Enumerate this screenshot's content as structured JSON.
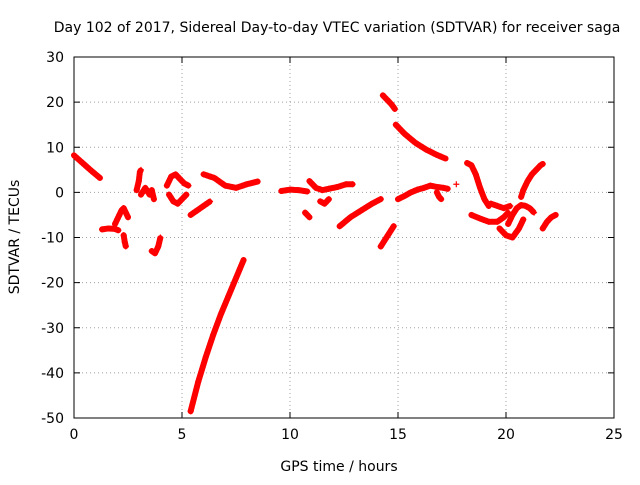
{
  "chart_data": {
    "type": "scatter",
    "title": "Day 102 of 2017, Sidereal Day-to-day VTEC variation (SDTVAR) for receiver saga",
    "xlabel": "GPS time / hours",
    "ylabel": "SDTVAR / TECUs",
    "xlim": [
      0,
      25
    ],
    "ylim": [
      -50,
      30
    ],
    "xticks": [
      "0",
      "5",
      "10",
      "15",
      "20",
      "25"
    ],
    "yticks": [
      "-50",
      "-40",
      "-30",
      "-20",
      "-10",
      "0",
      "10",
      "20",
      "30"
    ],
    "grid": true,
    "marker": "+",
    "color": "#ff0000",
    "segments": [
      {
        "x": [
          0.0,
          0.4,
          0.8,
          1.2
        ],
        "y": [
          8.2,
          6.5,
          4.8,
          3.2
        ]
      },
      {
        "x": [
          1.3,
          1.6,
          1.9,
          2.05
        ],
        "y": [
          -8.2,
          -8.0,
          -8.1,
          -8.4
        ]
      },
      {
        "x": [
          1.9,
          2.0,
          2.1,
          2.2,
          2.3,
          2.4,
          2.5
        ],
        "y": [
          -7.0,
          -6.0,
          -5.0,
          -4.0,
          -3.5,
          -4.5,
          -5.5
        ]
      },
      {
        "x": [
          2.3,
          2.35,
          2.4
        ],
        "y": [
          -9.5,
          -11.0,
          -12.0
        ]
      },
      {
        "x": [
          2.9,
          3.0,
          3.05,
          3.1
        ],
        "y": [
          0.5,
          2.5,
          4.5,
          5.0
        ]
      },
      {
        "x": [
          3.1,
          3.3,
          3.5,
          3.6,
          3.7
        ],
        "y": [
          -0.5,
          1.0,
          -0.5,
          0.5,
          -1.5
        ]
      },
      {
        "x": [
          3.6,
          3.75,
          3.9,
          4.0
        ],
        "y": [
          -13.0,
          -13.5,
          -12.0,
          -10.0
        ]
      },
      {
        "x": [
          4.3,
          4.5,
          4.7,
          4.9,
          5.1,
          5.3
        ],
        "y": [
          1.5,
          3.5,
          4.0,
          3.0,
          2.0,
          1.5
        ]
      },
      {
        "x": [
          4.4,
          4.6,
          4.8,
          5.0,
          5.2
        ],
        "y": [
          -0.5,
          -2.0,
          -2.5,
          -1.5,
          -0.5
        ]
      },
      {
        "x": [
          5.4,
          5.7,
          6.0,
          6.3
        ],
        "y": [
          -5.0,
          -4.0,
          -3.0,
          -2.0
        ]
      },
      {
        "x": [
          5.4,
          5.75,
          6.1,
          6.45,
          6.8,
          7.15,
          7.5,
          7.85
        ],
        "y": [
          -48.5,
          -42.0,
          -36.5,
          -31.5,
          -27.0,
          -23.0,
          -19.0,
          -15.0
        ]
      },
      {
        "x": [
          6.0,
          6.5,
          7.0,
          7.5,
          8.0,
          8.5
        ],
        "y": [
          4.0,
          3.2,
          1.5,
          1.0,
          1.8,
          2.4
        ]
      },
      {
        "x": [
          9.6,
          10.0,
          10.4,
          10.8
        ],
        "y": [
          0.3,
          0.6,
          0.5,
          0.2
        ]
      },
      {
        "x": [
          10.7,
          10.8,
          10.9
        ],
        "y": [
          -4.5,
          -5.0,
          -5.5
        ]
      },
      {
        "x": [
          10.9,
          11.2,
          11.5,
          11.8,
          12.2,
          12.6,
          12.9
        ],
        "y": [
          2.5,
          1.0,
          0.5,
          0.8,
          1.2,
          1.8,
          1.8
        ]
      },
      {
        "x": [
          11.4,
          11.6,
          11.8
        ],
        "y": [
          -2.0,
          -2.5,
          -1.5
        ]
      },
      {
        "x": [
          12.3,
          12.8,
          13.3,
          13.8,
          14.2
        ],
        "y": [
          -7.5,
          -5.5,
          -4.0,
          -2.5,
          -1.5
        ]
      },
      {
        "x": [
          14.2,
          14.4,
          14.6,
          14.8
        ],
        "y": [
          -12.0,
          -10.5,
          -9.0,
          -7.5
        ]
      },
      {
        "x": [
          14.3,
          14.5,
          14.7,
          14.85
        ],
        "y": [
          21.5,
          20.5,
          19.5,
          18.5
        ]
      },
      {
        "x": [
          14.9,
          15.3,
          15.8,
          16.3,
          16.8,
          17.2
        ],
        "y": [
          15.0,
          13.0,
          11.0,
          9.5,
          8.3,
          7.5
        ]
      },
      {
        "x": [
          15.0,
          15.3,
          15.6,
          15.9,
          16.2,
          16.5,
          16.8,
          17.1,
          17.3
        ],
        "y": [
          -1.5,
          -0.8,
          0.0,
          0.6,
          1.0,
          1.5,
          1.2,
          1.0,
          0.8
        ]
      },
      {
        "x": [
          16.8,
          16.9,
          17.0
        ],
        "y": [
          0.0,
          -1.0,
          -1.5
        ]
      },
      {
        "x": [
          17.7
        ],
        "y": [
          1.8
        ]
      },
      {
        "x": [
          18.2,
          18.4,
          18.6,
          18.8,
          19.0,
          19.2
        ],
        "y": [
          6.5,
          6.0,
          4.0,
          1.0,
          -1.5,
          -3.0
        ]
      },
      {
        "x": [
          18.4,
          18.8,
          19.2,
          19.6,
          19.9,
          20.1
        ],
        "y": [
          -5.0,
          -5.8,
          -6.5,
          -6.5,
          -5.5,
          -4.5
        ]
      },
      {
        "x": [
          19.3,
          19.6,
          19.9,
          20.2
        ],
        "y": [
          -2.5,
          -3.0,
          -3.5,
          -3.0
        ]
      },
      {
        "x": [
          19.7,
          20.0,
          20.3,
          20.6,
          20.8
        ],
        "y": [
          -8.0,
          -9.5,
          -10.0,
          -8.0,
          -6.0
        ]
      },
      {
        "x": [
          20.1,
          20.3,
          20.5,
          20.7,
          20.9,
          21.1,
          21.3
        ],
        "y": [
          -7.0,
          -5.0,
          -3.5,
          -2.8,
          -3.0,
          -3.5,
          -4.5
        ]
      },
      {
        "x": [
          20.7,
          20.8,
          21.0,
          21.2,
          21.4,
          21.6,
          21.7
        ],
        "y": [
          -1.0,
          0.5,
          2.5,
          4.0,
          5.0,
          6.0,
          6.3
        ]
      },
      {
        "x": [
          21.7,
          21.9,
          22.1,
          22.3
        ],
        "y": [
          -8.0,
          -6.5,
          -5.5,
          -5.0
        ]
      }
    ]
  }
}
